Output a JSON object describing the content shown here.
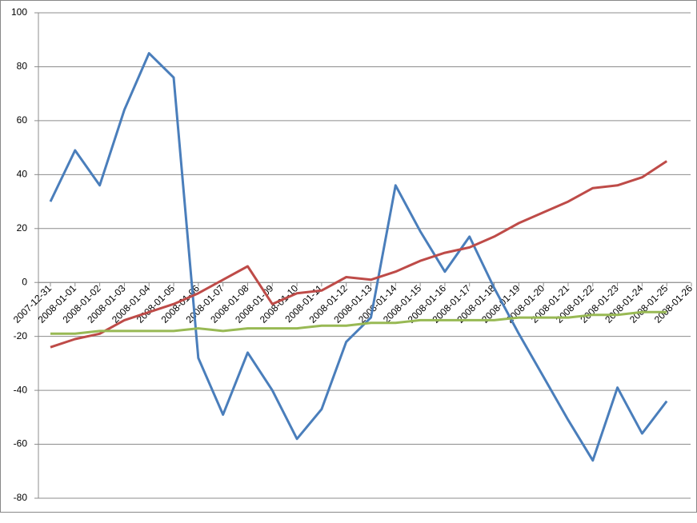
{
  "chart_data": {
    "type": "line",
    "x": [
      "2007-12-31",
      "2008-01-01",
      "2008-01-02",
      "2008-01-03",
      "2008-01-04",
      "2008-01-05",
      "2008-01-06",
      "2008-01-07",
      "2008-01-08",
      "2008-01-09",
      "2008-01-10",
      "2008-01-11",
      "2008-01-12",
      "2008-01-13",
      "2008-01-14",
      "2008-01-15",
      "2008-01-16",
      "2008-01-17",
      "2008-01-18",
      "2008-01-19",
      "2008-01-20",
      "2008-01-21",
      "2008-01-22",
      "2008-01-23",
      "2008-01-24",
      "2008-01-25"
    ],
    "series": [
      {
        "color": "#4a7ebb",
        "values": [
          30,
          49,
          36,
          64,
          85,
          76,
          -28,
          -49,
          -26,
          -40,
          -58,
          -47,
          -22,
          -13,
          36,
          19,
          4,
          17,
          -2,
          -19,
          -35,
          -51,
          -66,
          -39,
          -56,
          -44
        ]
      },
      {
        "color": "#be4b48",
        "values": [
          -24,
          -21,
          -19,
          -14,
          -11,
          -8,
          -4,
          1,
          6,
          -8,
          -4,
          -3,
          2,
          1,
          4,
          8,
          11,
          13,
          17,
          22,
          26,
          30,
          35,
          36,
          39,
          45
        ]
      },
      {
        "color": "#98b954",
        "values": [
          -19,
          -19,
          -18,
          -18,
          -18,
          -18,
          -17,
          -18,
          -17,
          -17,
          -17,
          -16,
          -16,
          -15,
          -15,
          -14,
          -14,
          -14,
          -14,
          -13,
          -13,
          -13,
          -12,
          -12,
          -11,
          -11
        ]
      }
    ],
    "xlim": [
      "2007-12-31",
      "2008-01-26"
    ],
    "xticks": [
      "2007-12-31",
      "2008-01-01",
      "2008-01-02",
      "2008-01-03",
      "2008-01-04",
      "2008-01-05",
      "2008-01-06",
      "2008-01-07",
      "2008-01-08",
      "2008-01-09",
      "2008-01-10",
      "2008-01-11",
      "2008-01-12",
      "2008-01-13",
      "2008-01-14",
      "2008-01-15",
      "2008-01-16",
      "2008-01-17",
      "2008-01-18",
      "2008-01-19",
      "2008-01-20",
      "2008-01-21",
      "2008-01-22",
      "2008-01-23",
      "2008-01-24",
      "2008-01-25",
      "2008-01-26"
    ],
    "ylim": [
      -80,
      100
    ],
    "yticks": [
      -80,
      -60,
      -40,
      -20,
      0,
      20,
      40,
      60,
      80,
      100
    ],
    "grid": true
  }
}
